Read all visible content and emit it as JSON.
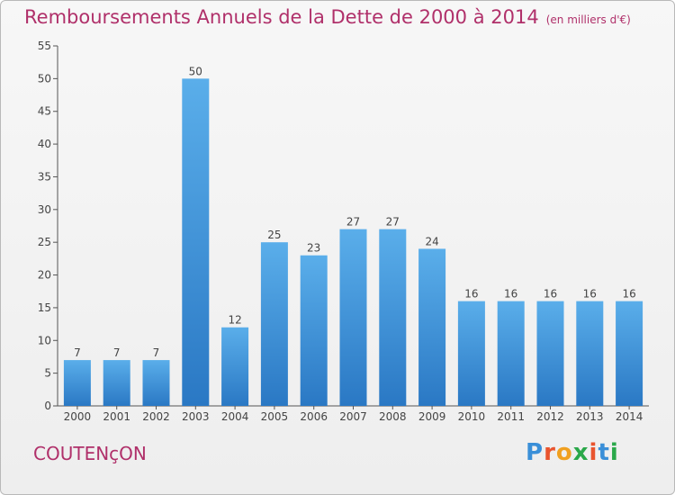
{
  "header": {
    "title": "Remboursements Annuels de la Dette de 2000 à 2014",
    "unit": "(en milliers d'€)"
  },
  "footer": {
    "commune": "COUTENçON",
    "logo_text": "Proxiti",
    "logo_colors": [
      "#3a8fd8",
      "#e9542e",
      "#f0a020",
      "#2aa84a",
      "#e9542e",
      "#3a8fd8",
      "#2aa84a"
    ]
  },
  "chart_data": {
    "type": "bar",
    "title": "Remboursements Annuels de la Dette de 2000 à 2014",
    "categories": [
      "2000",
      "2001",
      "2002",
      "2003",
      "2004",
      "2005",
      "2006",
      "2007",
      "2008",
      "2009",
      "2010",
      "2011",
      "2012",
      "2013",
      "2014"
    ],
    "values": [
      7,
      7,
      7,
      50,
      12,
      25,
      23,
      27,
      27,
      24,
      16,
      16,
      16,
      16,
      16
    ],
    "ylim": [
      0,
      55
    ],
    "yticks": [
      0,
      5,
      10,
      15,
      20,
      25,
      30,
      35,
      40,
      45,
      50,
      55
    ],
    "grid": false,
    "bar_color_top": "#5aaeea",
    "bar_color_bottom": "#2a78c4",
    "label_color": "#444444"
  }
}
